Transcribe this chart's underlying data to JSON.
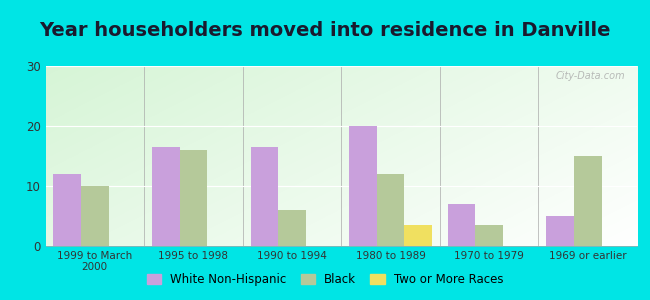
{
  "title": "Year householders moved into residence in Danville",
  "categories": [
    "1999 to March\n2000",
    "1995 to 1998",
    "1990 to 1994",
    "1980 to 1989",
    "1970 to 1979",
    "1969 or earlier"
  ],
  "series": {
    "White Non-Hispanic": [
      12,
      16.5,
      16.5,
      20,
      7,
      5
    ],
    "Black": [
      10,
      16,
      6,
      12,
      3.5,
      15
    ],
    "Two or More Races": [
      0,
      0,
      0,
      3.5,
      0,
      0
    ]
  },
  "colors": {
    "White Non-Hispanic": "#c9a0dc",
    "Black": "#b5c99a",
    "Two or More Races": "#f0e060"
  },
  "ylim": [
    0,
    30
  ],
  "yticks": [
    0,
    10,
    20,
    30
  ],
  "background_color": "#00e5e5",
  "bar_width": 0.28,
  "title_fontsize": 14,
  "watermark": "City-Data.com"
}
